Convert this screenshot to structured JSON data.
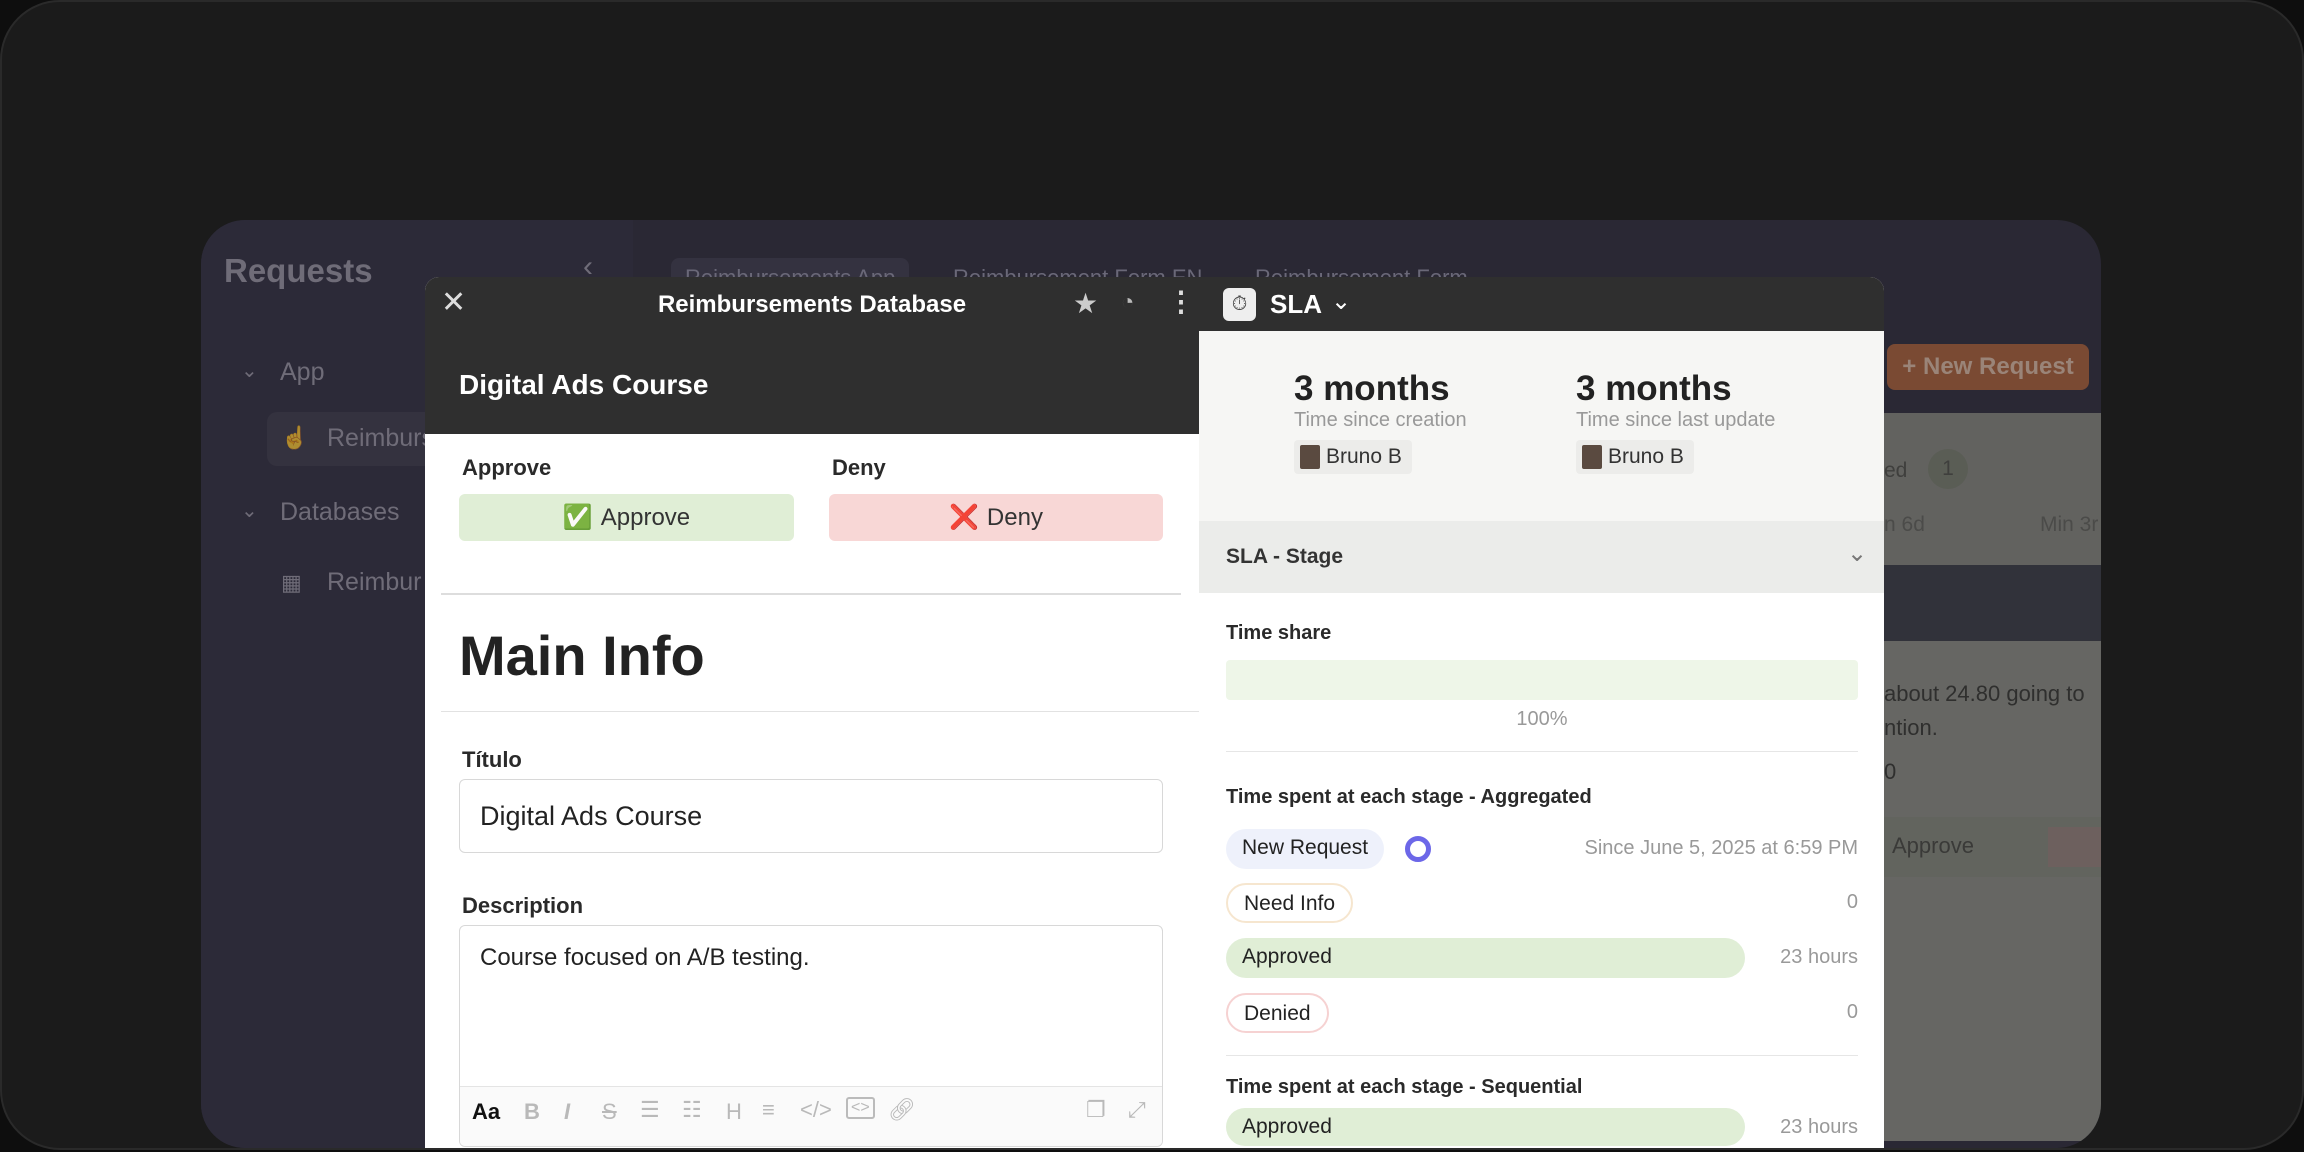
{
  "background": {
    "sidebar": {
      "title": "Requests",
      "sections": [
        {
          "label": "App",
          "items": [
            "Reimburs"
          ]
        },
        {
          "label": "Databases",
          "items": [
            "Reimbur"
          ]
        }
      ]
    },
    "tabs": [
      "Reimbursements App",
      "Reimbursement Form EN",
      "Reimbursement Form"
    ],
    "new_request": "+ New Request",
    "peek": {
      "badge_label": "ed",
      "badge_count": "1",
      "stat1": "n 6d",
      "stat2": "Min 3r",
      "text1": "about 24.80 going to",
      "text2": "ntion.",
      "value": "0",
      "approve": "Approve"
    }
  },
  "modal": {
    "title": "Reimbursements Database",
    "record_title": "Digital Ads Course",
    "approve_label": "Approve",
    "approve_button": "Approve",
    "approve_emoji": "✅",
    "deny_label": "Deny",
    "deny_button": "Deny",
    "deny_emoji": "❌",
    "section": "Main Info",
    "titulo_label": "Título",
    "titulo_value": "Digital Ads Course",
    "description_label": "Description",
    "description_value": "Course focused on A/B testing.",
    "toolbar": {
      "format": "Aa",
      "bold": "B",
      "italic": "I",
      "strike": "S",
      "heading": "H"
    }
  },
  "sla": {
    "title": "SLA",
    "stats": [
      {
        "value": "3 months",
        "label": "Time since creation",
        "user": "Bruno B"
      },
      {
        "value": "3 months",
        "label": "Time since last update",
        "user": "Bruno B"
      }
    ],
    "stage_section": "SLA - Stage",
    "time_share_label": "Time share",
    "time_share": "100%",
    "time_share_fraction": 1.0,
    "aggregated_title": "Time spent at each stage - Aggregated",
    "aggregated": [
      {
        "stage": "New Request",
        "value": "Since June 5, 2025 at 6:59 PM",
        "current": true,
        "color": "#eef1fb"
      },
      {
        "stage": "Need Info",
        "value": "0",
        "color": "#f6e6cf"
      },
      {
        "stage": "Approved",
        "value": "23 hours",
        "color": "#e0eed6"
      },
      {
        "stage": "Denied",
        "value": "0",
        "color": "#f6d2d2"
      }
    ],
    "sequential_title": "Time spent at each stage - Sequential",
    "sequential": [
      {
        "stage": "Approved",
        "value": "23 hours"
      }
    ]
  }
}
